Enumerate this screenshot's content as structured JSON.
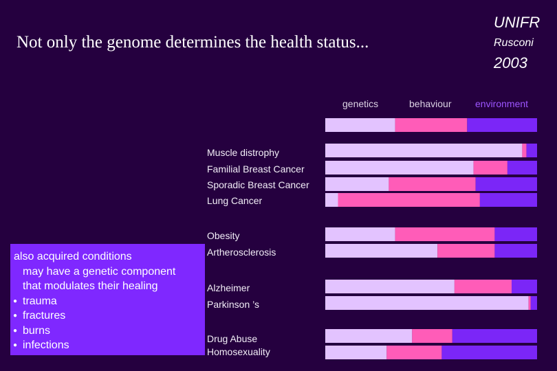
{
  "title": "Not only the  genome determines the health status...",
  "corner": {
    "org": "UNIFR",
    "author": "Rusconi",
    "year": "2003"
  },
  "colors": {
    "background": "#25003f",
    "genetics": "#e3c3ff",
    "behaviour": "#ff5cb8",
    "environment": "#7b26f7",
    "box": "#7f28ff"
  },
  "chart_data": {
    "type": "bar",
    "orientation": "horizontal",
    "stacked": true,
    "normalized": true,
    "legend_position": "top",
    "series": [
      {
        "name": "genetics",
        "values": [
          33,
          93,
          70,
          30,
          6,
          33,
          53,
          61,
          96,
          41,
          29
        ]
      },
      {
        "name": "behaviour",
        "values": [
          34,
          2,
          16,
          41,
          67,
          47,
          27,
          27,
          1,
          19,
          26
        ]
      },
      {
        "name": "environment",
        "values": [
          33,
          5,
          14,
          29,
          27,
          20,
          20,
          12,
          3,
          40,
          45
        ]
      }
    ],
    "categories": [
      "",
      "Muscle distrophy",
      "Familial Breast Cancer",
      "Sporadic Breast Cancer",
      "Lung Cancer",
      "Obesity",
      "Artherosclerosis",
      "Alzheimer",
      "Parkinson ’s",
      "Drug Abuse",
      "Homosexuality"
    ]
  },
  "box": {
    "lines": [
      "also acquired conditions",
      "may have a genetic component",
      "that modulates their healing"
    ],
    "bullets": [
      "trauma",
      "fractures",
      "burns",
      "infections"
    ]
  }
}
